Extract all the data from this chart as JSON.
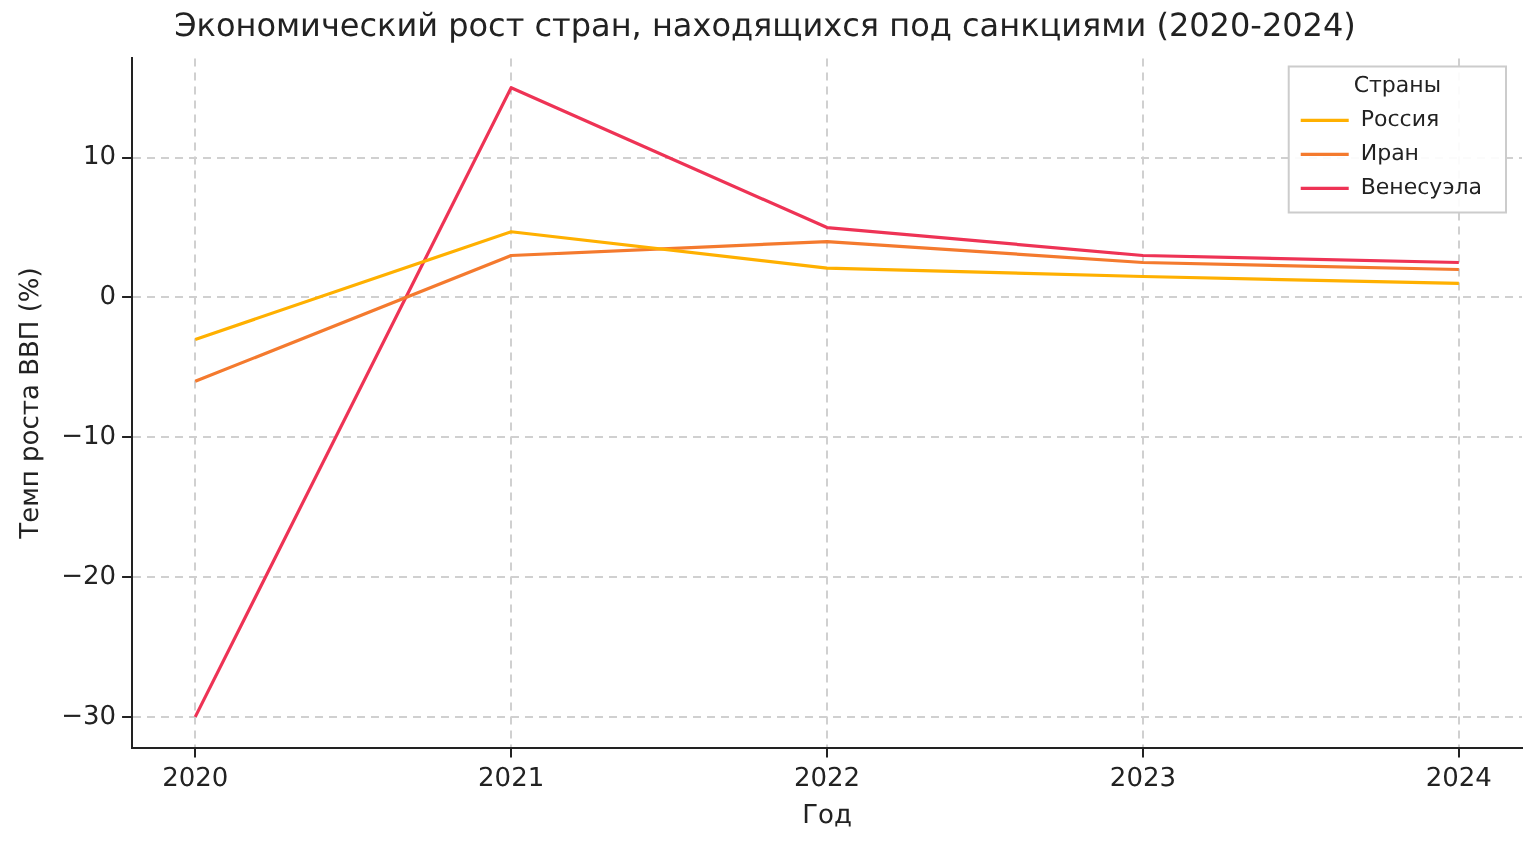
{
  "chart_data": {
    "type": "line",
    "title": "Экономический рост стран, находящихся под санкциями (2020-2024)",
    "xlabel": "Год",
    "ylabel": "Темп роста ВВП (%)",
    "legend_title": "Страны",
    "x": [
      2020,
      2021,
      2022,
      2023,
      2024
    ],
    "series": [
      {
        "name": "Россия",
        "color": "#ffb000",
        "values": [
          -3,
          4.7,
          2.1,
          1.5,
          1
        ]
      },
      {
        "name": "Иран",
        "color": "#f47a2e",
        "values": [
          -6,
          3,
          4,
          2.5,
          2
        ]
      },
      {
        "name": "Венесуэла",
        "color": "#ee3355",
        "values": [
          -30,
          15,
          5,
          3,
          2.5
        ]
      }
    ],
    "xlim": [
      2019.8,
      2024.2
    ],
    "xticks": [
      2020,
      2021,
      2022,
      2023,
      2024
    ],
    "ylim": [
      -32.2,
      17.1
    ],
    "yticks": [
      -30,
      -20,
      -10,
      0,
      10
    ],
    "grid": true,
    "legend": "top right",
    "marker": "none",
    "line_style": "solid"
  }
}
